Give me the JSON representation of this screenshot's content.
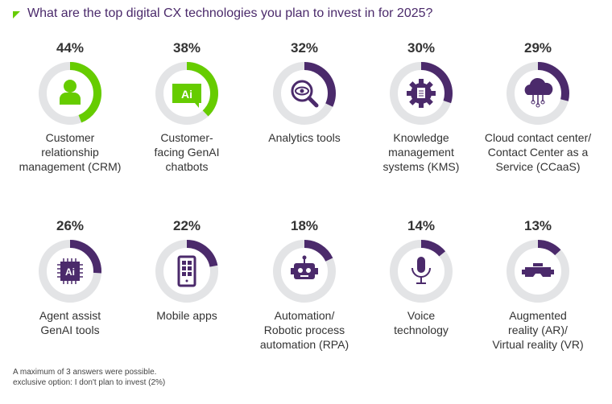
{
  "title": "What are the top digital CX technologies you plan to invest in for 2025?",
  "colors": {
    "green": "#66cc00",
    "purple": "#4b2a6b",
    "track": "#e3e4e6"
  },
  "chart_data": {
    "type": "donut",
    "title": "What are the top digital CX technologies you plan to invest in for 2025?",
    "unit": "%",
    "items": [
      {
        "label": "Customer\nrelationship\nmanagement (CRM)",
        "value": 44,
        "pct_label": "44%",
        "icon": "person-icon",
        "color": "green"
      },
      {
        "label": "Customer-\nfacing GenAI\nchatbots",
        "value": 38,
        "pct_label": "38%",
        "icon": "ai-chat-icon",
        "color": "green"
      },
      {
        "label": "Analytics tools",
        "value": 32,
        "pct_label": "32%",
        "icon": "magnifier-eye-icon",
        "color": "purple"
      },
      {
        "label": "Knowledge\nmanagement\nsystems (KMS)",
        "value": 30,
        "pct_label": "30%",
        "icon": "gear-document-icon",
        "color": "purple"
      },
      {
        "label": "Cloud contact center/\nContact Center as a\nService (CCaaS)",
        "value": 29,
        "pct_label": "29%",
        "icon": "cloud-network-icon",
        "color": "purple"
      },
      {
        "label": "Agent assist\nGenAI tools",
        "value": 26,
        "pct_label": "26%",
        "icon": "ai-chip-icon",
        "color": "purple"
      },
      {
        "label": "Mobile apps",
        "value": 22,
        "pct_label": "22%",
        "icon": "mobile-phone-icon",
        "color": "purple"
      },
      {
        "label": "Automation/\nRobotic process\nautomation (RPA)",
        "value": 18,
        "pct_label": "18%",
        "icon": "robot-icon",
        "color": "purple"
      },
      {
        "label": "Voice\ntechnology",
        "value": 14,
        "pct_label": "14%",
        "icon": "microphone-icon",
        "color": "purple"
      },
      {
        "label": "Augmented\nreality (AR)/\nVirtual reality (VR)",
        "value": 13,
        "pct_label": "13%",
        "icon": "vr-headset-icon",
        "color": "purple"
      }
    ]
  },
  "footnotes": [
    "A maximum of 3 answers were possible.",
    "exclusive option: I don't plan to invest (2%)"
  ]
}
